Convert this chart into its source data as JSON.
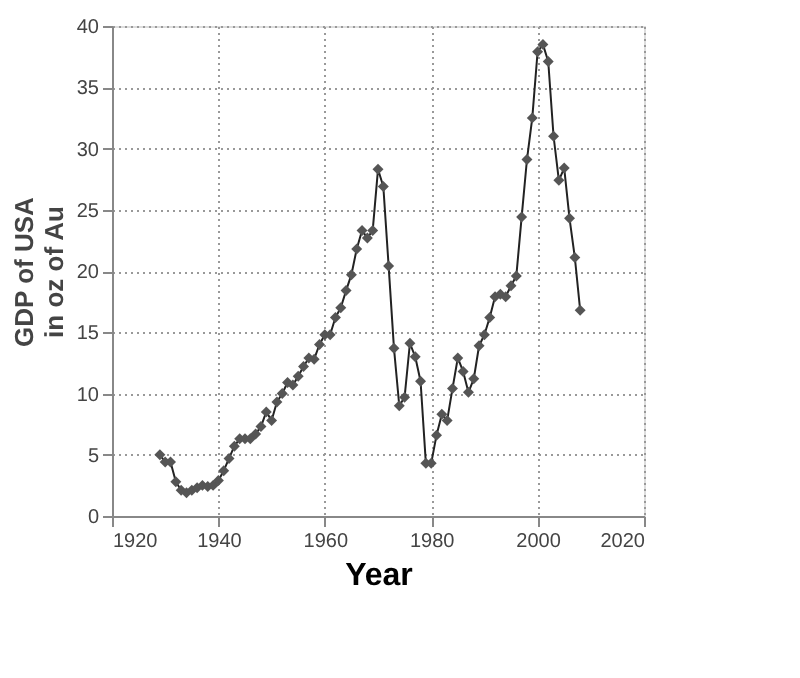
{
  "chart_data": {
    "type": "line",
    "xlabel": "Year",
    "ylabel": "GDP of USA\nin oz of Au",
    "x": [
      1929,
      1930,
      1931,
      1932,
      1933,
      1934,
      1935,
      1936,
      1937,
      1938,
      1939,
      1940,
      1941,
      1942,
      1943,
      1944,
      1945,
      1946,
      1947,
      1948,
      1949,
      1950,
      1951,
      1952,
      1953,
      1954,
      1955,
      1956,
      1957,
      1958,
      1959,
      1960,
      1961,
      1962,
      1963,
      1964,
      1965,
      1966,
      1967,
      1968,
      1969,
      1970,
      1971,
      1972,
      1973,
      1974,
      1975,
      1976,
      1977,
      1978,
      1979,
      1980,
      1981,
      1982,
      1983,
      1984,
      1985,
      1986,
      1987,
      1988,
      1989,
      1990,
      1991,
      1992,
      1993,
      1994,
      1995,
      1996,
      1997,
      1998,
      1999,
      2000,
      2001,
      2002,
      2003,
      2004,
      2005,
      2006,
      2007,
      2008
    ],
    "series": [
      {
        "color": "#555555",
        "values": [
          5.0,
          4.4,
          4.4,
          2.8,
          2.1,
          1.9,
          2.1,
          2.3,
          2.5,
          2.4,
          2.5,
          2.9,
          3.7,
          4.7,
          5.7,
          6.3,
          6.3,
          6.3,
          6.7,
          7.3,
          8.5,
          7.8,
          9.3,
          10.0,
          10.9,
          10.7,
          11.4,
          12.2,
          12.9,
          12.8,
          14.0,
          14.8,
          14.8,
          16.2,
          17.0,
          18.4,
          19.7,
          21.8,
          23.3,
          22.7,
          23.3,
          28.3,
          26.9,
          20.4,
          13.7,
          9.0,
          9.7,
          14.1,
          13.0,
          11.0,
          4.3,
          4.3,
          6.6,
          8.3,
          7.8,
          10.4,
          12.9,
          11.8,
          10.1,
          11.2,
          13.9,
          14.8,
          16.2,
          17.9,
          18.1,
          17.9,
          18.8,
          19.6,
          24.4,
          29.1,
          32.5,
          37.9,
          38.5,
          37.1,
          31.0,
          27.4,
          28.4,
          24.3,
          21.1,
          16.8
        ]
      }
    ],
    "xlim": [
      1920,
      2020
    ],
    "xticks": [
      1920,
      1940,
      1960,
      1980,
      2000,
      2020
    ],
    "ylim": [
      0,
      40
    ],
    "yticks": [
      0,
      5,
      10,
      15,
      20,
      25,
      30,
      35,
      40
    ],
    "grid": true,
    "marker": "diamond",
    "line_style": "solid"
  }
}
